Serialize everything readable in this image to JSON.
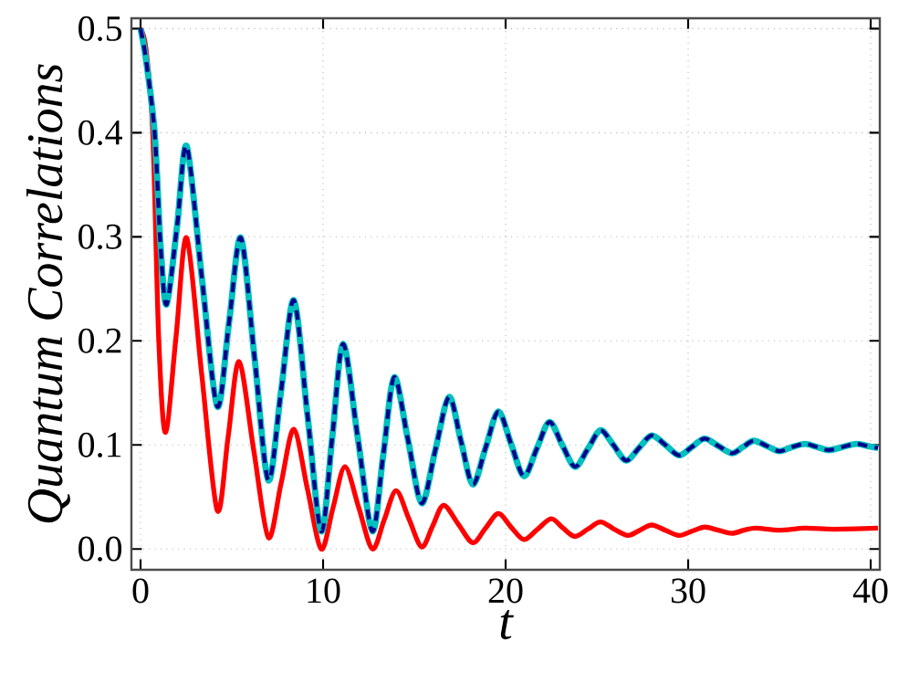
{
  "chart_data": {
    "type": "line",
    "xlabel": "t",
    "ylabel": "Quantum Correlations",
    "xlim": [
      -0.5,
      40.5
    ],
    "ylim": [
      -0.02,
      0.51
    ],
    "xticks": [
      0,
      10,
      20,
      30,
      40
    ],
    "yticks": [
      {
        "value": 0,
        "label": "0.0"
      },
      {
        "value": 0.1,
        "label": "0.1"
      },
      {
        "value": 0.2,
        "label": "0.2"
      },
      {
        "value": 0.3,
        "label": "0.3"
      },
      {
        "value": 0.4,
        "label": "0.4"
      },
      {
        "value": 0.5,
        "label": "0.5"
      }
    ],
    "grid": true,
    "line_style": "solid",
    "series": [
      {
        "color": "#ff0000",
        "x": [
          0,
          0.3,
          0.67,
          1.0,
          1.37,
          1.95,
          2.53,
          3.35,
          4.2,
          4.8,
          5.4,
          6.2,
          7.0,
          7.7,
          8.4,
          9.15,
          9.9,
          10.55,
          11.2,
          11.95,
          12.7,
          13.35,
          14.0,
          14.7,
          15.4,
          16.0,
          16.6,
          17.4,
          18.2,
          18.9,
          19.6,
          20.3,
          21.0,
          21.75,
          22.5,
          23.15,
          23.8,
          24.5,
          25.2,
          25.95,
          26.7,
          27.35,
          28.0,
          28.75,
          29.5,
          30.2,
          30.9,
          31.65,
          32.4,
          33.05,
          33.7,
          35.0,
          36.4,
          38.0,
          40.4
        ],
        "values": [
          0.5,
          0.48,
          0.4,
          0.2,
          0.112,
          0.205,
          0.299,
          0.168,
          0.037,
          0.108,
          0.18,
          0.095,
          0.011,
          0.063,
          0.115,
          0.057,
          0.0,
          0.04,
          0.079,
          0.04,
          0.0,
          0.028,
          0.056,
          0.029,
          0.002,
          0.022,
          0.042,
          0.024,
          0.006,
          0.02,
          0.034,
          0.021,
          0.009,
          0.019,
          0.029,
          0.02,
          0.012,
          0.019,
          0.026,
          0.019,
          0.013,
          0.018,
          0.023,
          0.018,
          0.013,
          0.017,
          0.021,
          0.018,
          0.015,
          0.018,
          0.02,
          0.018,
          0.02,
          0.019,
          0.02
        ]
      },
      {
        "color": "#00bfbf",
        "x": [
          0,
          0.3,
          0.77,
          1.1,
          1.43,
          2.0,
          2.53,
          3.35,
          4.2,
          4.85,
          5.5,
          6.25,
          7.0,
          7.7,
          8.4,
          9.15,
          9.9,
          10.5,
          11.1,
          11.9,
          12.7,
          13.3,
          13.9,
          14.65,
          15.4,
          16.15,
          16.9,
          17.55,
          18.2,
          18.9,
          19.6,
          20.3,
          21.0,
          21.7,
          22.4,
          23.1,
          23.8,
          24.5,
          25.2,
          25.9,
          26.6,
          27.3,
          28.0,
          28.75,
          29.5,
          30.2,
          30.9,
          31.65,
          32.4,
          33.0,
          33.6,
          34.3,
          35.0,
          35.7,
          36.4,
          37.05,
          37.7,
          38.45,
          39.2,
          39.8,
          40.4
        ],
        "values": [
          0.5,
          0.47,
          0.4,
          0.29,
          0.235,
          0.31,
          0.387,
          0.262,
          0.137,
          0.218,
          0.299,
          0.183,
          0.066,
          0.152,
          0.239,
          0.128,
          0.017,
          0.107,
          0.197,
          0.107,
          0.017,
          0.091,
          0.165,
          0.105,
          0.044,
          0.095,
          0.146,
          0.104,
          0.062,
          0.097,
          0.132,
          0.101,
          0.07,
          0.096,
          0.122,
          0.1,
          0.079,
          0.096,
          0.114,
          0.1,
          0.085,
          0.097,
          0.109,
          0.1,
          0.09,
          0.098,
          0.106,
          0.099,
          0.092,
          0.098,
          0.104,
          0.099,
          0.094,
          0.098,
          0.101,
          0.098,
          0.095,
          0.098,
          0.101,
          0.099,
          0.097
        ]
      },
      {
        "color": "#00008b",
        "line_style": "dashed",
        "x": [
          0,
          0.3,
          0.77,
          1.1,
          1.43,
          2.0,
          2.53,
          3.35,
          4.2,
          4.85,
          5.5,
          6.25,
          7.0,
          7.7,
          8.4,
          9.15,
          9.9,
          10.5,
          11.1,
          11.9,
          12.7,
          13.3,
          13.9,
          14.65,
          15.4,
          16.15,
          16.9,
          17.55,
          18.2,
          18.9,
          19.6,
          20.3,
          21.0,
          21.7,
          22.4,
          23.1,
          23.8,
          24.5,
          25.2,
          25.9,
          26.6,
          27.3,
          28.0,
          28.75,
          29.5,
          30.2,
          30.9,
          31.65,
          32.4,
          33.0,
          33.6,
          34.3,
          35.0,
          35.7,
          36.4,
          37.05,
          37.7,
          38.45,
          39.2,
          39.8,
          40.4
        ],
        "values": [
          0.5,
          0.47,
          0.4,
          0.29,
          0.235,
          0.31,
          0.387,
          0.262,
          0.137,
          0.218,
          0.299,
          0.183,
          0.066,
          0.152,
          0.239,
          0.128,
          0.017,
          0.107,
          0.197,
          0.107,
          0.017,
          0.091,
          0.165,
          0.105,
          0.044,
          0.095,
          0.146,
          0.104,
          0.062,
          0.097,
          0.132,
          0.101,
          0.07,
          0.096,
          0.122,
          0.1,
          0.079,
          0.096,
          0.114,
          0.1,
          0.085,
          0.097,
          0.109,
          0.1,
          0.09,
          0.098,
          0.106,
          0.099,
          0.092,
          0.098,
          0.104,
          0.099,
          0.094,
          0.098,
          0.101,
          0.098,
          0.095,
          0.098,
          0.101,
          0.099,
          0.097
        ]
      }
    ]
  }
}
